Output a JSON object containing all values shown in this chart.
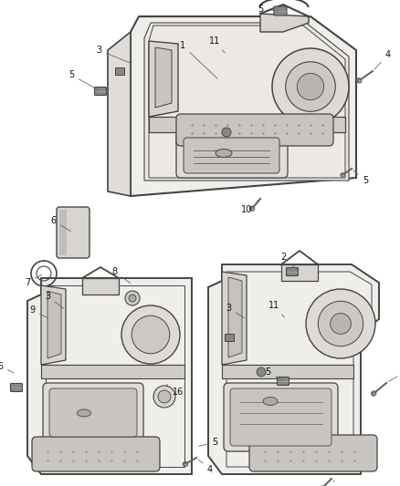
{
  "bg_color": "#ffffff",
  "lc": "#444444",
  "panel_fill": "#f0eeeb",
  "panel_inner_fill": "#e8e5e0",
  "armrest_fill": "#dbd8d2",
  "grille_fill": "#c8c5c0",
  "speaker_fill": "#d5d2cd",
  "handle_fill": "#e0ddd8",
  "screw_color": "#666666",
  "ann_fs": 7,
  "figsize": [
    4.38,
    5.33
  ],
  "dpi": 100
}
